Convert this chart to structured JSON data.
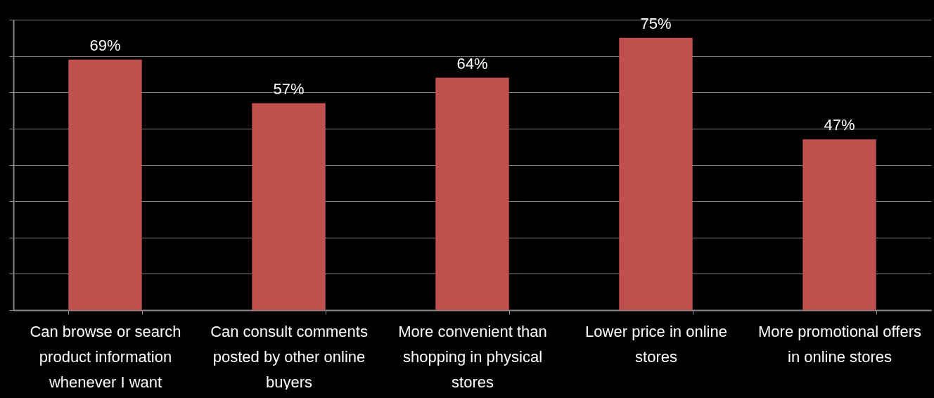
{
  "chart_data": {
    "type": "bar",
    "categories": [
      "Can browse or search product information whenever I want",
      "Can consult comments posted by other online buyers",
      "More convenient than shopping in physical stores",
      "Lower price in online stores",
      "More promotional offers in online stores"
    ],
    "values": [
      69,
      57,
      64,
      75,
      47
    ],
    "value_labels": [
      "69%",
      "57%",
      "64%",
      "75%",
      "47%"
    ],
    "color": "#c0504d",
    "ylim": [
      0,
      80
    ],
    "yticks": [
      {
        "value": 0,
        "label": null
      },
      {
        "value": 10,
        "label": null
      },
      {
        "value": 20,
        "label": null
      },
      {
        "value": 30,
        "label": null
      },
      {
        "value": 40,
        "label": null
      },
      {
        "value": 50,
        "label": null
      },
      {
        "value": 60,
        "label": null
      },
      {
        "value": 70,
        "label": null
      },
      {
        "value": 80,
        "label": null
      }
    ],
    "grid": "y",
    "tick_labels": "x"
  }
}
